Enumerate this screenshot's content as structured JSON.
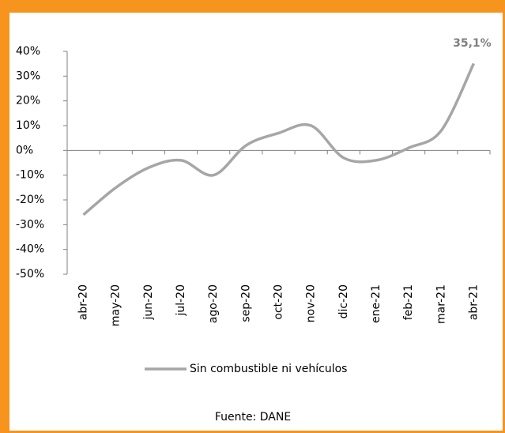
{
  "chart_data": {
    "type": "line",
    "categories": [
      "abr-20",
      "may-20",
      "jun-20",
      "jul-20",
      "ago-20",
      "sep-20",
      "oct-20",
      "nov-20",
      "dic-20",
      "ene-21",
      "feb-21",
      "mar-21",
      "abr-21"
    ],
    "series": [
      {
        "name": "Sin combustible ni vehículos",
        "color": "#a6a6a6",
        "values": [
          -26,
          -15,
          -7,
          -4,
          -10,
          2,
          7,
          10,
          -3,
          -4,
          1,
          8,
          35.1
        ]
      }
    ],
    "value_labels": {
      "index": 12,
      "label": "35,1%"
    },
    "ylim": [
      -50,
      40
    ],
    "yticks": [
      {
        "value": -50,
        "label": "-50%"
      },
      {
        "value": -40,
        "label": "-40%"
      },
      {
        "value": -30,
        "label": "-30%"
      },
      {
        "value": -20,
        "label": "-20%"
      },
      {
        "value": -10,
        "label": "-10%"
      },
      {
        "value": 0,
        "label": "0%"
      },
      {
        "value": 10,
        "label": "10%"
      },
      {
        "value": 20,
        "label": "20%"
      },
      {
        "value": 30,
        "label": "30%"
      },
      {
        "value": 40,
        "label": "40%"
      }
    ],
    "source": "Fuente: DANE"
  }
}
